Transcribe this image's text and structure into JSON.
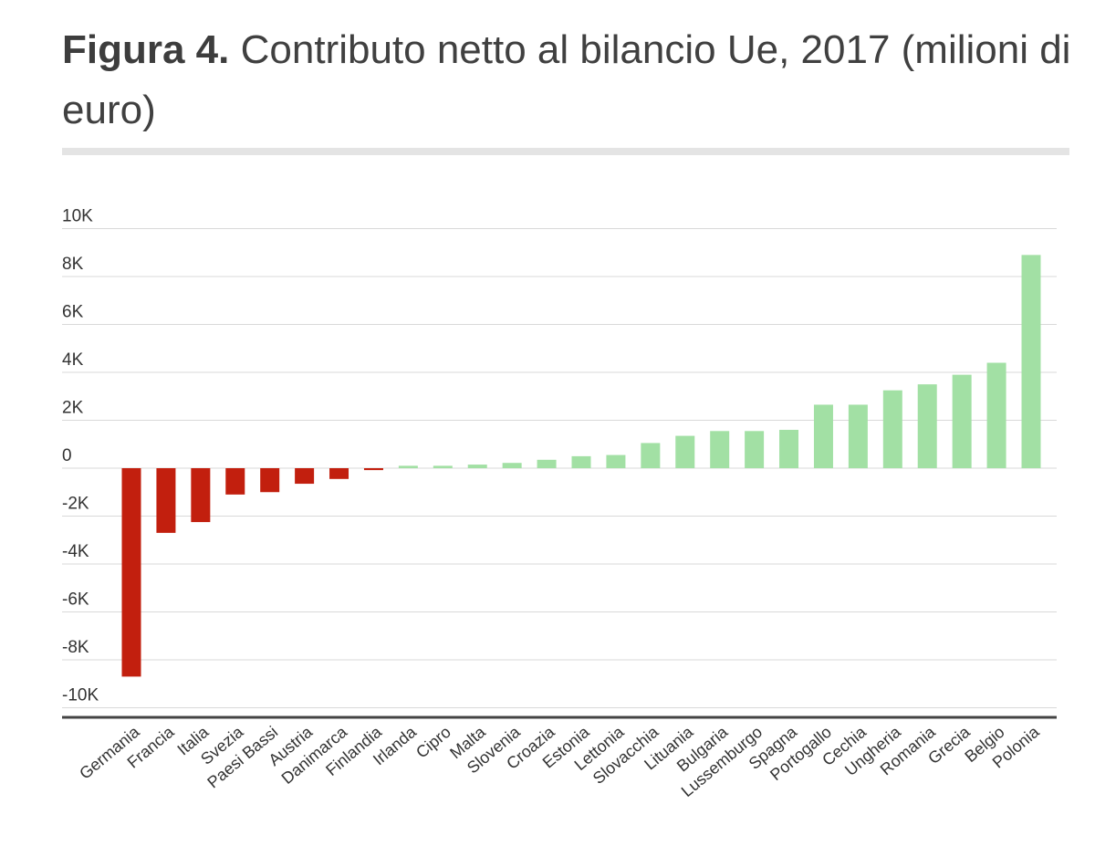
{
  "header": {
    "title_prefix": "Figura 4.",
    "title_text": "Contributo netto al bilancio Ue, 2017 (milioni di euro)"
  },
  "colors": {
    "negative": "#c21f0e",
    "positive": "#a2e0a4",
    "grid": "#d9d9d9",
    "axis": "#444444"
  },
  "chart_data": {
    "type": "bar",
    "title": "Contributo netto al bilancio Ue, 2017 (milioni di euro)",
    "xlabel": "",
    "ylabel": "",
    "ylim": [
      -10000,
      10000
    ],
    "yticks": [
      {
        "value": 10000,
        "label": "10K"
      },
      {
        "value": 8000,
        "label": "8K"
      },
      {
        "value": 6000,
        "label": "6K"
      },
      {
        "value": 4000,
        "label": "4K"
      },
      {
        "value": 2000,
        "label": "2K"
      },
      {
        "value": 0,
        "label": "0"
      },
      {
        "value": -2000,
        "label": "-2K"
      },
      {
        "value": -4000,
        "label": "-4K"
      },
      {
        "value": -6000,
        "label": "-6K"
      },
      {
        "value": -8000,
        "label": "-8K"
      },
      {
        "value": -10000,
        "label": "-10K"
      }
    ],
    "categories": [
      "Germania",
      "Francia",
      "Italia",
      "Svezia",
      "Paesi Bassi",
      "Austria",
      "Danimarca",
      "Finlandia",
      "Irlanda",
      "Cipro",
      "Malta",
      "Slovenia",
      "Croazia",
      "Estonia",
      "Lettonia",
      "Slovacchia",
      "Lituania",
      "Bulgaria",
      "Lussemburgo",
      "Spagna",
      "Portogallo",
      "Cechia",
      "Ungheria",
      "Romania",
      "Grecia",
      "Belgio",
      "Polonia"
    ],
    "values": [
      -8700,
      -2700,
      -2250,
      -1100,
      -1000,
      -650,
      -450,
      -80,
      100,
      100,
      150,
      220,
      350,
      500,
      550,
      1050,
      1350,
      1550,
      1550,
      1600,
      2650,
      2650,
      3250,
      3500,
      3900,
      4400,
      8900
    ]
  }
}
